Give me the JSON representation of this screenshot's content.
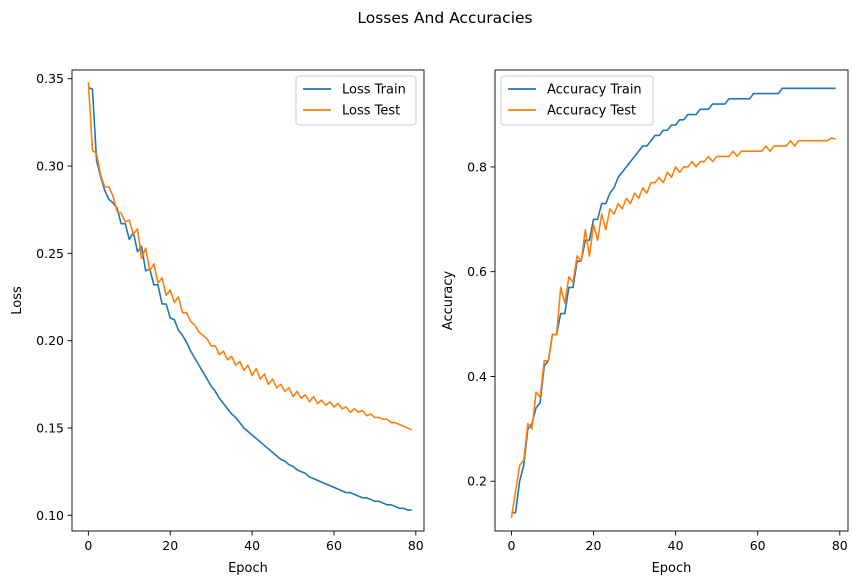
{
  "figure": {
    "title": "Losses And Accuracies"
  },
  "chart_data": [
    {
      "type": "line",
      "xlabel": "Epoch",
      "ylabel": "Loss",
      "xlim": [
        -4,
        82
      ],
      "ylim": [
        0.091,
        0.355
      ],
      "xticks": [
        0,
        20,
        40,
        60,
        80
      ],
      "yticks": [
        0.1,
        0.15,
        0.2,
        0.25,
        0.3,
        0.35
      ],
      "ytick_labels": [
        "0.10",
        "0.15",
        "0.20",
        "0.25",
        "0.30",
        "0.35"
      ],
      "legend": "top-right",
      "series": [
        {
          "name": "Loss Train",
          "color": "#1f77b4",
          "x": [
            0,
            1,
            2,
            3,
            4,
            5,
            6,
            7,
            8,
            9,
            10,
            11,
            12,
            13,
            14,
            15,
            16,
            17,
            18,
            19,
            20,
            21,
            22,
            23,
            24,
            25,
            26,
            27,
            28,
            29,
            30,
            31,
            32,
            33,
            34,
            35,
            36,
            37,
            38,
            39,
            40,
            41,
            42,
            43,
            44,
            45,
            46,
            47,
            48,
            49,
            50,
            51,
            52,
            53,
            54,
            55,
            56,
            57,
            58,
            59,
            60,
            61,
            62,
            63,
            64,
            65,
            66,
            67,
            68,
            69,
            70,
            71,
            72,
            73,
            74,
            75,
            76,
            77,
            78,
            79
          ],
          "values": [
            0.345,
            0.344,
            0.303,
            0.294,
            0.286,
            0.281,
            0.279,
            0.276,
            0.267,
            0.267,
            0.258,
            0.262,
            0.251,
            0.254,
            0.24,
            0.241,
            0.232,
            0.232,
            0.221,
            0.221,
            0.213,
            0.212,
            0.206,
            0.203,
            0.199,
            0.194,
            0.19,
            0.186,
            0.182,
            0.178,
            0.174,
            0.171,
            0.167,
            0.164,
            0.161,
            0.158,
            0.156,
            0.153,
            0.15,
            0.148,
            0.146,
            0.144,
            0.142,
            0.14,
            0.138,
            0.136,
            0.134,
            0.132,
            0.131,
            0.129,
            0.128,
            0.126,
            0.125,
            0.124,
            0.122,
            0.121,
            0.12,
            0.119,
            0.118,
            0.117,
            0.116,
            0.115,
            0.114,
            0.113,
            0.113,
            0.112,
            0.111,
            0.11,
            0.11,
            0.109,
            0.108,
            0.108,
            0.107,
            0.106,
            0.106,
            0.105,
            0.104,
            0.104,
            0.103,
            0.103
          ]
        },
        {
          "name": "Loss Test",
          "color": "#ff7f0e",
          "x": [
            0,
            1,
            2,
            3,
            4,
            5,
            6,
            7,
            8,
            9,
            10,
            11,
            12,
            13,
            14,
            15,
            16,
            17,
            18,
            19,
            20,
            21,
            22,
            23,
            24,
            25,
            26,
            27,
            28,
            29,
            30,
            31,
            32,
            33,
            34,
            35,
            36,
            37,
            38,
            39,
            40,
            41,
            42,
            43,
            44,
            45,
            46,
            47,
            48,
            49,
            50,
            51,
            52,
            53,
            54,
            55,
            56,
            57,
            58,
            59,
            60,
            61,
            62,
            63,
            64,
            65,
            66,
            67,
            68,
            69,
            70,
            71,
            72,
            73,
            74,
            75,
            76,
            77,
            78,
            79
          ],
          "values": [
            0.348,
            0.309,
            0.307,
            0.295,
            0.288,
            0.288,
            0.283,
            0.274,
            0.273,
            0.268,
            0.269,
            0.261,
            0.264,
            0.247,
            0.253,
            0.24,
            0.244,
            0.233,
            0.236,
            0.226,
            0.229,
            0.222,
            0.225,
            0.216,
            0.216,
            0.211,
            0.209,
            0.205,
            0.203,
            0.201,
            0.197,
            0.197,
            0.192,
            0.194,
            0.189,
            0.191,
            0.186,
            0.188,
            0.183,
            0.186,
            0.18,
            0.184,
            0.178,
            0.181,
            0.175,
            0.178,
            0.173,
            0.175,
            0.171,
            0.173,
            0.168,
            0.171,
            0.167,
            0.169,
            0.165,
            0.168,
            0.164,
            0.166,
            0.163,
            0.165,
            0.162,
            0.164,
            0.161,
            0.162,
            0.159,
            0.161,
            0.159,
            0.16,
            0.157,
            0.158,
            0.156,
            0.156,
            0.155,
            0.155,
            0.153,
            0.153,
            0.152,
            0.151,
            0.15,
            0.149
          ]
        }
      ]
    },
    {
      "type": "line",
      "xlabel": "Epoch",
      "ylabel": "Accuracy",
      "xlim": [
        -4,
        82
      ],
      "ylim": [
        0.105,
        0.985
      ],
      "xticks": [
        0,
        20,
        40,
        60,
        80
      ],
      "yticks": [
        0.2,
        0.4,
        0.6,
        0.8
      ],
      "ytick_labels": [
        "0.2",
        "0.4",
        "0.6",
        "0.8"
      ],
      "legend": "top-left",
      "series": [
        {
          "name": "Accuracy Train",
          "color": "#1f77b4",
          "x": [
            0,
            1,
            2,
            3,
            4,
            5,
            6,
            7,
            8,
            9,
            10,
            11,
            12,
            13,
            14,
            15,
            16,
            17,
            18,
            19,
            20,
            21,
            22,
            23,
            24,
            25,
            26,
            27,
            28,
            29,
            30,
            31,
            32,
            33,
            34,
            35,
            36,
            37,
            38,
            39,
            40,
            41,
            42,
            43,
            44,
            45,
            46,
            47,
            48,
            49,
            50,
            51,
            52,
            53,
            54,
            55,
            56,
            57,
            58,
            59,
            60,
            61,
            62,
            63,
            64,
            65,
            66,
            67,
            68,
            69,
            70,
            71,
            72,
            73,
            74,
            75,
            76,
            77,
            78,
            79
          ],
          "values": [
            0.14,
            0.14,
            0.2,
            0.23,
            0.3,
            0.31,
            0.34,
            0.35,
            0.42,
            0.43,
            0.48,
            0.48,
            0.52,
            0.52,
            0.57,
            0.57,
            0.62,
            0.62,
            0.66,
            0.66,
            0.7,
            0.7,
            0.73,
            0.73,
            0.75,
            0.76,
            0.78,
            0.79,
            0.8,
            0.81,
            0.82,
            0.83,
            0.84,
            0.84,
            0.85,
            0.86,
            0.86,
            0.87,
            0.87,
            0.88,
            0.88,
            0.89,
            0.89,
            0.9,
            0.9,
            0.9,
            0.91,
            0.91,
            0.91,
            0.92,
            0.92,
            0.92,
            0.92,
            0.93,
            0.93,
            0.93,
            0.93,
            0.93,
            0.93,
            0.94,
            0.94,
            0.94,
            0.94,
            0.94,
            0.94,
            0.94,
            0.95,
            0.95,
            0.95,
            0.95,
            0.95,
            0.95,
            0.95,
            0.95,
            0.95,
            0.95,
            0.95,
            0.95,
            0.95,
            0.95
          ]
        },
        {
          "name": "Accuracy Test",
          "color": "#ff7f0e",
          "x": [
            0,
            1,
            2,
            3,
            4,
            5,
            6,
            7,
            8,
            9,
            10,
            11,
            12,
            13,
            14,
            15,
            16,
            17,
            18,
            19,
            20,
            21,
            22,
            23,
            24,
            25,
            26,
            27,
            28,
            29,
            30,
            31,
            32,
            33,
            34,
            35,
            36,
            37,
            38,
            39,
            40,
            41,
            42,
            43,
            44,
            45,
            46,
            47,
            48,
            49,
            50,
            51,
            52,
            53,
            54,
            55,
            56,
            57,
            58,
            59,
            60,
            61,
            62,
            63,
            64,
            65,
            66,
            67,
            68,
            69,
            70,
            71,
            72,
            73,
            74,
            75,
            76,
            77,
            78,
            79
          ],
          "values": [
            0.13,
            0.18,
            0.23,
            0.24,
            0.31,
            0.3,
            0.37,
            0.36,
            0.43,
            0.43,
            0.48,
            0.48,
            0.57,
            0.54,
            0.59,
            0.58,
            0.63,
            0.62,
            0.68,
            0.63,
            0.69,
            0.66,
            0.71,
            0.68,
            0.72,
            0.71,
            0.73,
            0.72,
            0.74,
            0.73,
            0.75,
            0.74,
            0.76,
            0.75,
            0.77,
            0.77,
            0.78,
            0.77,
            0.79,
            0.78,
            0.8,
            0.79,
            0.8,
            0.8,
            0.81,
            0.8,
            0.81,
            0.81,
            0.82,
            0.81,
            0.82,
            0.82,
            0.82,
            0.82,
            0.83,
            0.82,
            0.83,
            0.83,
            0.83,
            0.83,
            0.83,
            0.83,
            0.84,
            0.83,
            0.84,
            0.84,
            0.84,
            0.84,
            0.85,
            0.84,
            0.85,
            0.85,
            0.85,
            0.85,
            0.85,
            0.85,
            0.85,
            0.85,
            0.855,
            0.853
          ]
        }
      ]
    }
  ]
}
